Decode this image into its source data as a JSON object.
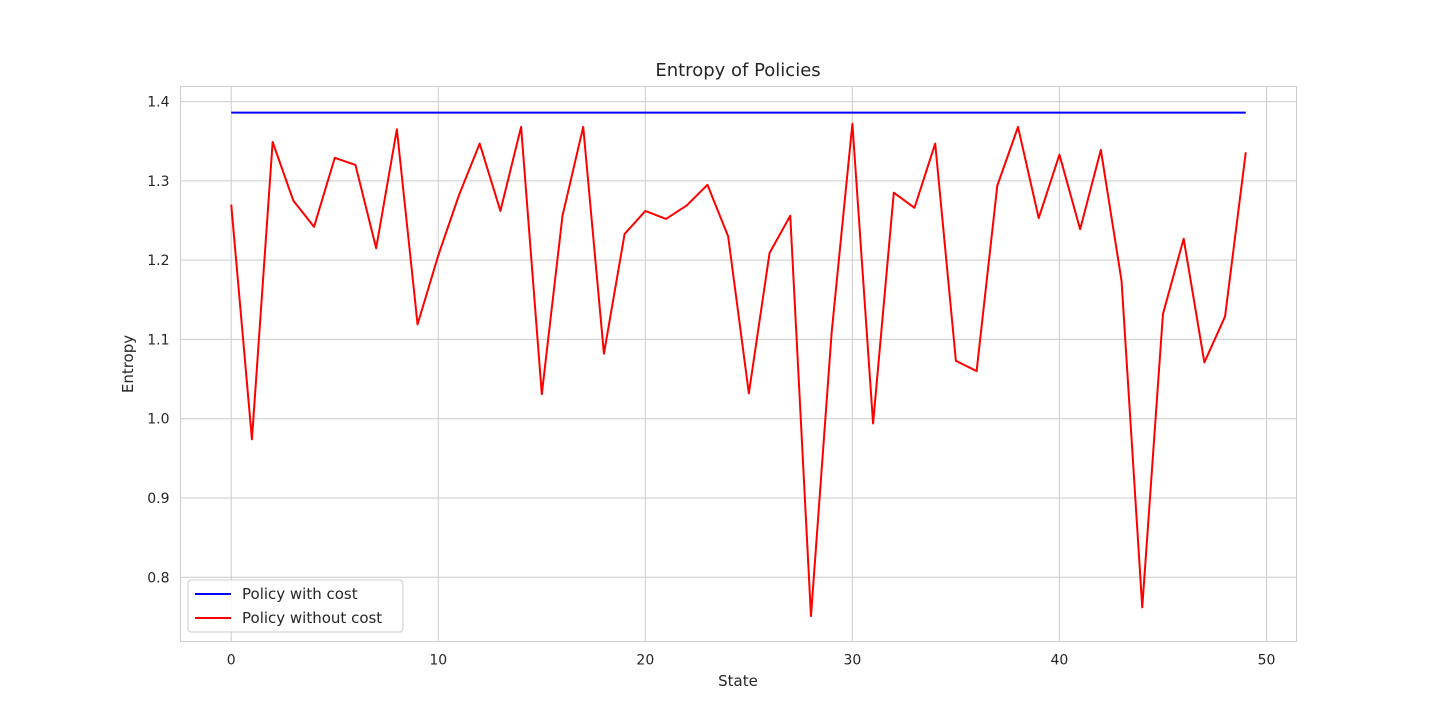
{
  "chart_data": {
    "type": "line",
    "title": "Entropy of Policies",
    "xlabel": "State",
    "ylabel": "Entropy",
    "xlim": [
      -2.45,
      51.45
    ],
    "ylim": [
      0.719,
      1.419
    ],
    "xticks": [
      0,
      10,
      20,
      30,
      40,
      50
    ],
    "yticks": [
      0.8,
      0.9,
      1.0,
      1.1,
      1.2,
      1.3,
      1.4
    ],
    "ytick_labels": [
      "0.8",
      "0.9",
      "1.0",
      "1.1",
      "1.2",
      "1.3",
      "1.4"
    ],
    "grid": true,
    "legend": "lower-left",
    "x": [
      0,
      1,
      2,
      3,
      4,
      5,
      6,
      7,
      8,
      9,
      10,
      11,
      12,
      13,
      14,
      15,
      16,
      17,
      18,
      19,
      20,
      21,
      22,
      23,
      24,
      25,
      26,
      27,
      28,
      29,
      30,
      31,
      32,
      33,
      34,
      35,
      36,
      37,
      38,
      39,
      40,
      41,
      42,
      43,
      44,
      45,
      46,
      47,
      48,
      49
    ],
    "series": [
      {
        "name": "Policy with cost",
        "color": "#0000ff",
        "values": [
          1.386,
          1.386,
          1.386,
          1.386,
          1.386,
          1.386,
          1.386,
          1.386,
          1.386,
          1.386,
          1.386,
          1.386,
          1.386,
          1.386,
          1.386,
          1.386,
          1.386,
          1.386,
          1.386,
          1.386,
          1.386,
          1.386,
          1.386,
          1.386,
          1.386,
          1.386,
          1.386,
          1.386,
          1.386,
          1.386,
          1.386,
          1.386,
          1.386,
          1.386,
          1.386,
          1.386,
          1.386,
          1.386,
          1.386,
          1.386,
          1.386,
          1.386,
          1.386,
          1.386,
          1.386,
          1.386,
          1.386,
          1.386,
          1.386,
          1.386
        ]
      },
      {
        "name": "Policy without cost",
        "color": "#ff0000",
        "values": [
          1.27,
          0.974,
          1.349,
          1.275,
          1.242,
          1.329,
          1.32,
          1.215,
          1.365,
          1.119,
          1.206,
          1.282,
          1.347,
          1.262,
          1.368,
          1.031,
          1.256,
          1.368,
          1.082,
          1.233,
          1.262,
          1.252,
          1.269,
          1.295,
          1.23,
          1.032,
          1.209,
          1.256,
          0.751,
          1.109,
          1.372,
          0.994,
          1.285,
          1.266,
          1.347,
          1.073,
          1.06,
          1.294,
          1.368,
          1.253,
          1.333,
          1.239,
          1.339,
          1.174,
          0.762,
          1.132,
          1.227,
          1.071,
          1.129,
          1.336
        ]
      }
    ]
  }
}
